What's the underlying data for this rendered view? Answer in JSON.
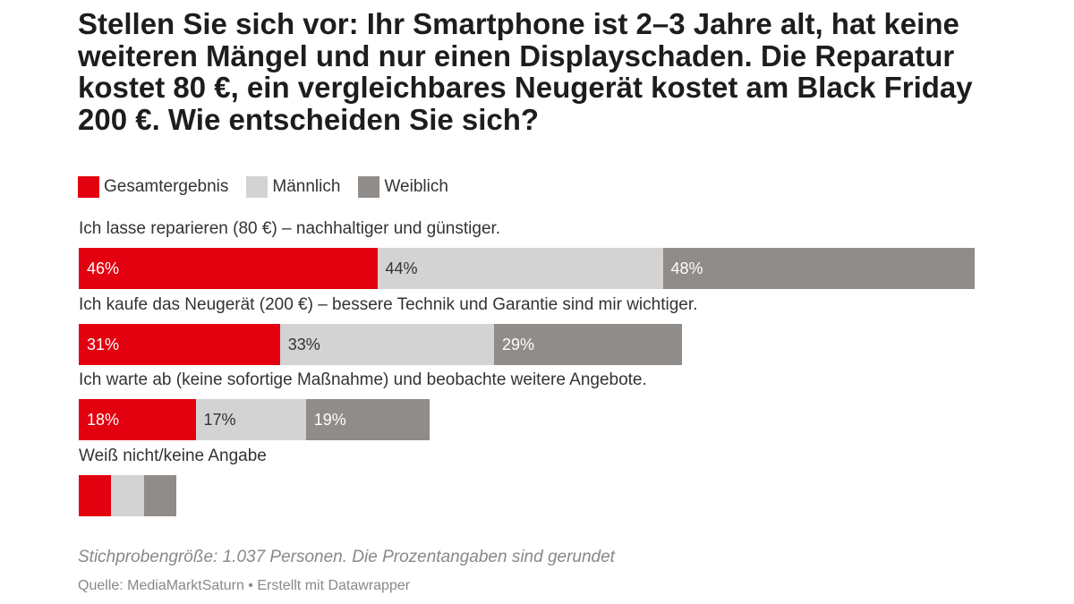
{
  "title": "Stellen Sie sich vor: Ihr Smartphone ist 2–3 Jahre alt, hat keine weiteren Mängel und nur einen Displayschaden. Die Reparatur kostet 80 €, ein vergleichbares Neugerät kostet am Black Friday 200 €. Wie entscheiden Sie sich?",
  "legend": [
    {
      "label": "Gesamtergebnis",
      "color": "#e3000f"
    },
    {
      "label": "Männlich",
      "color": "#d3d3d3"
    },
    {
      "label": "Weiblich",
      "color": "#8f8c89"
    }
  ],
  "chart_data": {
    "type": "bar",
    "stacked": true,
    "title": "Stellen Sie sich vor: Ihr Smartphone ist 2–3 Jahre alt, hat keine weiteren Mängel und nur einen Displayschaden. Die Reparatur kostet 80 €, ein vergleichbares Neugerät kostet am Black Friday 200 €. Wie entscheiden Sie sich?",
    "categories": [
      "Ich lasse reparieren (80 €) – nachhaltiger und günstiger.",
      "Ich kaufe das Neugerät (200 €) – bessere Technik und Garantie sind mir wichtiger.",
      "Ich warte ab (keine sofortige Maßnahme) und beobachte weitere Angebote.",
      "Weiß nicht/keine Angabe"
    ],
    "series": [
      {
        "name": "Gesamtergebnis",
        "color": "#e3000f",
        "values": [
          46,
          31,
          18,
          5
        ],
        "labels": [
          "46%",
          "31%",
          "18%",
          ""
        ]
      },
      {
        "name": "Männlich",
        "color": "#d3d3d3",
        "values": [
          44,
          33,
          17,
          5
        ],
        "labels": [
          "44%",
          "33%",
          "17%",
          ""
        ]
      },
      {
        "name": "Weiblich",
        "color": "#8f8c89",
        "values": [
          48,
          29,
          19,
          5
        ],
        "labels": [
          "48%",
          "29%",
          "19%",
          ""
        ]
      }
    ],
    "legend": "top-left",
    "grid": false
  },
  "footnote": "Stichprobengröße: 1.037 Personen. Die Prozentangaben sind gerundet",
  "source": "Quelle: MediaMarktSaturn • Erstellt mit Datawrapper"
}
